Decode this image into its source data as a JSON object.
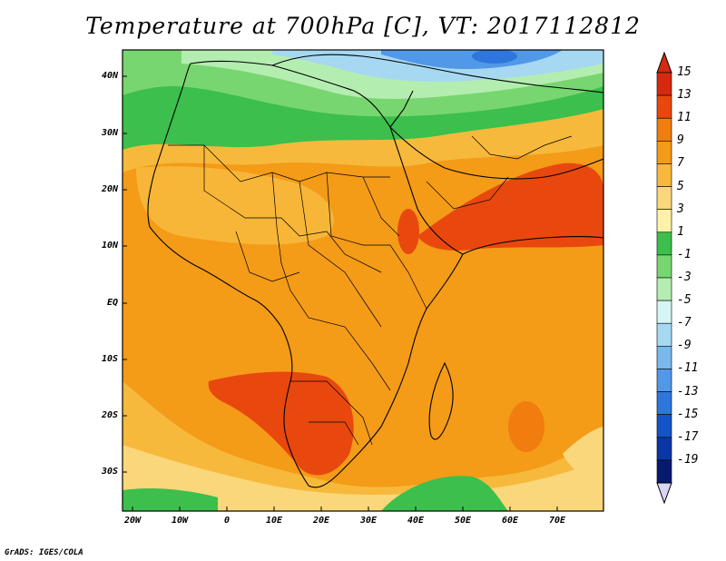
{
  "title": "Temperature at 700hPa [C], VT: 2017112812",
  "credit": "GrADS: IGES/COLA",
  "lat_labels": [
    "40N",
    "30N",
    "20N",
    "10N",
    "EQ",
    "10S",
    "20S",
    "30S"
  ],
  "lon_labels": [
    "20W",
    "10W",
    "0",
    "10E",
    "20E",
    "30E",
    "40E",
    "50E",
    "60E",
    "70E"
  ],
  "colorbar": {
    "labels": [
      "15",
      "13",
      "11",
      "9",
      "7",
      "5",
      "3",
      "1",
      "-1",
      "-3",
      "-5",
      "-7",
      "-9",
      "-11",
      "-13",
      "-15",
      "-17",
      "-19"
    ],
    "colors": [
      "#d62a10",
      "#e8480e",
      "#f07d0e",
      "#f49b18",
      "#f7b93c",
      "#fad77a",
      "#fff2a8",
      "#3cbf4c",
      "#78d670",
      "#b4edb0",
      "#d6f5f5",
      "#a6d8f2",
      "#7ab8ec",
      "#5298e8",
      "#2f76dc",
      "#1454c8",
      "#0a36a6",
      "#061a70"
    ]
  }
}
